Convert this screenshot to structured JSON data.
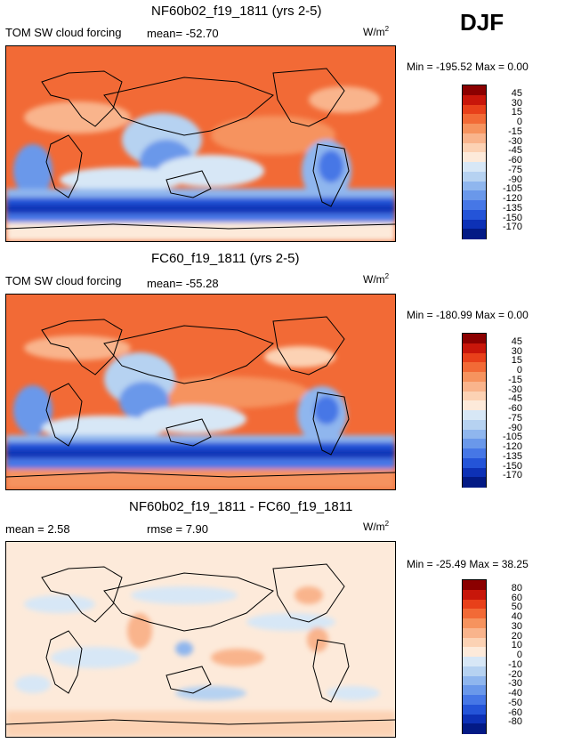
{
  "season": "DJF",
  "panels": [
    {
      "title": "NF60b02_f19_1811 (yrs 2-5)",
      "variable": "TOM SW cloud forcing",
      "stat1": "mean=  -52.70",
      "stat2": "",
      "units_base": "W/m",
      "units_sup": "2",
      "minmax": "Min = -195.52  Max =    0.00",
      "palette": "mean"
    },
    {
      "title": "FC60_f19_1811 (yrs 2-5)",
      "variable": "TOM SW cloud forcing",
      "stat1": "mean=  -55.28",
      "stat2": "",
      "units_base": "W/m",
      "units_sup": "2",
      "minmax": "Min = -180.99  Max =    0.00",
      "palette": "mean"
    },
    {
      "title": "NF60b02_f19_1811 - FC60_f19_1811",
      "variable": "",
      "stat1": "mean =    2.58",
      "stat2": "rmse =    7.90",
      "units_base": "W/m",
      "units_sup": "2",
      "minmax": "Min = -25.49  Max =  38.25",
      "palette": "diff"
    }
  ],
  "colorbars": {
    "mean": {
      "levels": [
        "45",
        "30",
        "15",
        "0",
        "-15",
        "-30",
        "-45",
        "-60",
        "-75",
        "-90",
        "-105",
        "-120",
        "-135",
        "-150",
        "-170"
      ],
      "colors": [
        "#8b0000",
        "#c8160a",
        "#e8401a",
        "#f26a36",
        "#f6935e",
        "#f9b48c",
        "#fcd2b4",
        "#fdeada",
        "#d7e7f6",
        "#b6d2f1",
        "#8fb6ee",
        "#6a98ea",
        "#4677e6",
        "#2454d8",
        "#0d31b6",
        "#031a85"
      ]
    },
    "diff": {
      "levels": [
        "80",
        "60",
        "50",
        "40",
        "30",
        "20",
        "10",
        "0",
        "-10",
        "-20",
        "-30",
        "-40",
        "-50",
        "-60",
        "-80"
      ],
      "colors": [
        "#8b0000",
        "#c8160a",
        "#e8401a",
        "#f26a36",
        "#f6935e",
        "#f9b48c",
        "#fcd2b4",
        "#fdeada",
        "#d7e7f6",
        "#b6d2f1",
        "#8fb6ee",
        "#6a98ea",
        "#4677e6",
        "#2454d8",
        "#0d31b6",
        "#031a85"
      ]
    }
  },
  "chart_data": [
    {
      "type": "heatmap",
      "title": "NF60b02_f19_1811 (yrs 2-5)",
      "subtitle": "TOM SW cloud forcing",
      "season": "DJF",
      "units": "W/m2",
      "mean": -52.7,
      "min": -195.52,
      "max": 0.0,
      "contour_levels": [
        45,
        30,
        15,
        0,
        -15,
        -30,
        -45,
        -60,
        -75,
        -90,
        -105,
        -120,
        -135,
        -150,
        -170
      ]
    },
    {
      "type": "heatmap",
      "title": "FC60_f19_1811 (yrs 2-5)",
      "subtitle": "TOM SW cloud forcing",
      "season": "DJF",
      "units": "W/m2",
      "mean": -55.28,
      "min": -180.99,
      "max": 0.0,
      "contour_levels": [
        45,
        30,
        15,
        0,
        -15,
        -30,
        -45,
        -60,
        -75,
        -90,
        -105,
        -120,
        -135,
        -150,
        -170
      ]
    },
    {
      "type": "heatmap",
      "title": "NF60b02_f19_1811 - FC60_f19_1811",
      "season": "DJF",
      "units": "W/m2",
      "mean": 2.58,
      "rmse": 7.9,
      "min": -25.49,
      "max": 38.25,
      "contour_levels": [
        80,
        60,
        50,
        40,
        30,
        20,
        10,
        0,
        -10,
        -20,
        -30,
        -40,
        -50,
        -60,
        -80
      ]
    }
  ]
}
